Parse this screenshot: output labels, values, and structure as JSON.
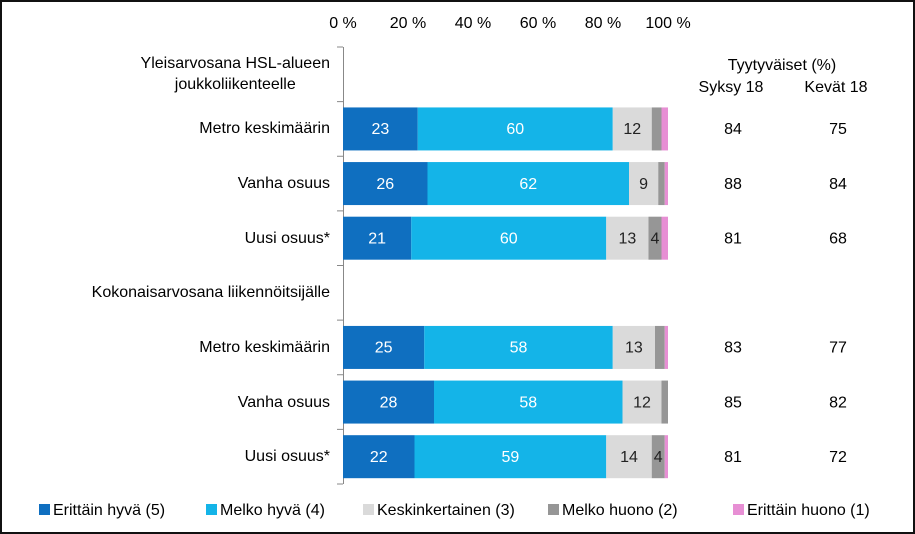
{
  "chart_data": {
    "type": "stacked-bar-horizontal",
    "categories": [
      "Yleisarvosana HSL-alueen\njoukkoliikenteelle",
      "Metro keskimäärin",
      "Vanha osuus",
      "Uusi osuus*",
      "Kokonaisarvosana liikennöitsijälle",
      "Metro keskimäärin",
      "Vanha osuus",
      "Uusi osuus*"
    ],
    "series": [
      {
        "name": "Erittäin hyvä (5)",
        "color": "#0f6fc0",
        "values": [
          null,
          23,
          26,
          21,
          null,
          25,
          28,
          22
        ],
        "value_labels": [
          null,
          "23",
          "26",
          "21",
          null,
          "25",
          "28",
          "22"
        ]
      },
      {
        "name": "Melko hyvä (4)",
        "color": "#14b4e8",
        "values": [
          null,
          60,
          62,
          60,
          null,
          58,
          58,
          59
        ],
        "value_labels": [
          null,
          "60",
          "62",
          "60",
          null,
          "58",
          "58",
          "59"
        ]
      },
      {
        "name": "Keskinkertainen (3)",
        "color": "#dadada",
        "values": [
          null,
          12,
          9,
          13,
          null,
          13,
          12,
          14
        ],
        "value_labels": [
          null,
          "12",
          "9",
          "13",
          null,
          "13",
          "12",
          "14"
        ]
      },
      {
        "name": "Melko huono (2)",
        "color": "#969696",
        "values": [
          null,
          3,
          2,
          4,
          null,
          3,
          2,
          4
        ],
        "value_labels": [
          null,
          null,
          null,
          "4",
          null,
          null,
          null,
          "4"
        ]
      },
      {
        "name": "Erittäin huono (1)",
        "color": "#e78fd4",
        "values": [
          null,
          2,
          1,
          2,
          null,
          1,
          0,
          1
        ]
      }
    ],
    "xlim": [
      0,
      100
    ],
    "xticks": [
      {
        "value": 0,
        "label": "0 %"
      },
      {
        "value": 20,
        "label": "20 %"
      },
      {
        "value": 40,
        "label": "40 %"
      },
      {
        "value": 60,
        "label": "60 %"
      },
      {
        "value": 80,
        "label": "80 %"
      },
      {
        "value": 100,
        "label": "100 %"
      }
    ],
    "grid": false,
    "legend": "bottom",
    "side_table": {
      "title": "Tyytyväiset (%)",
      "columns": [
        "Syksy 18",
        "Kevät 18"
      ],
      "values": [
        [
          null,
          null
        ],
        [
          84,
          75
        ],
        [
          88,
          84
        ],
        [
          81,
          68
        ],
        [
          null,
          null
        ],
        [
          83,
          77
        ],
        [
          85,
          82
        ],
        [
          81,
          72
        ]
      ]
    }
  }
}
